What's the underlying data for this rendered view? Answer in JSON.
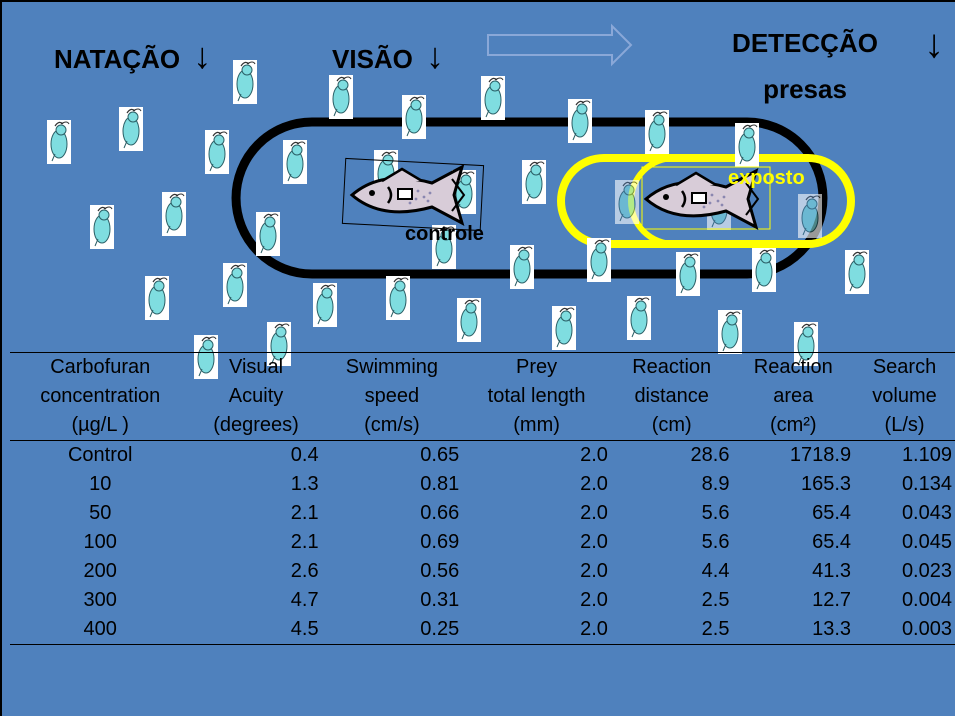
{
  "headings": {
    "natacao": "NATAÇÃO",
    "visao": "VISÃO",
    "deteccao_line1": "DETECÇÃO",
    "deteccao_line2": "presas",
    "arrow_glyph": "↓"
  },
  "labels": {
    "control_fish": "controle",
    "exposed_fish": "exposto"
  },
  "colors": {
    "background": "#4f81bd",
    "prey": "#7fdde0",
    "exposed_ring": "#ffff00",
    "exposed_label": "#ffff00"
  },
  "table": {
    "headers": [
      [
        "Carbofuran",
        "Visual",
        "Swimming",
        "Prey",
        "Reaction",
        "Reaction",
        "Search"
      ],
      [
        "concentration",
        "Acuity",
        "speed",
        "total length",
        "distance",
        "area",
        "volume"
      ],
      [
        "(µg/L )",
        "(degrees)",
        "(cm/s)",
        "(mm)",
        "(cm)",
        "(cm²)",
        "(L/s)"
      ]
    ],
    "rows": [
      [
        "Control",
        "0.4",
        "0.65",
        "2.0",
        "28.6",
        "1718.9",
        "1.109"
      ],
      [
        "10",
        "1.3",
        "0.81",
        "2.0",
        "8.9",
        "165.3",
        "0.134"
      ],
      [
        "50",
        "2.1",
        "0.66",
        "2.0",
        "5.6",
        "65.4",
        "0.043"
      ],
      [
        "100",
        "2.1",
        "0.69",
        "2.0",
        "5.6",
        "65.4",
        "0.045"
      ],
      [
        "200",
        "2.6",
        "0.56",
        "2.0",
        "4.4",
        "41.3",
        "0.023"
      ],
      [
        "300",
        "4.7",
        "0.31",
        "2.0",
        "2.5",
        "12.7",
        "0.004"
      ],
      [
        "400",
        "4.5",
        "0.25",
        "2.0",
        "2.5",
        "13.3",
        "0.003"
      ]
    ]
  }
}
